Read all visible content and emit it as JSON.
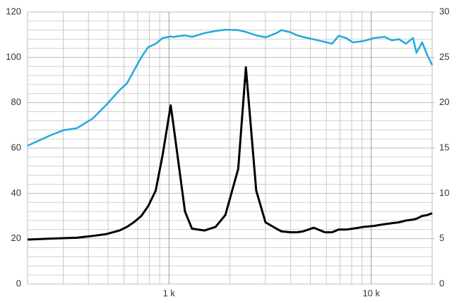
{
  "chart_data": {
    "type": "line",
    "xscale": "log",
    "grid": true,
    "x": [
      200,
      260,
      300,
      350,
      420,
      490,
      570,
      620,
      670,
      730,
      790,
      860,
      930,
      1020,
      1050,
      1200,
      1300,
      1500,
      1700,
      1900,
      2200,
      2400,
      2700,
      3000,
      3400,
      3600,
      4000,
      4300,
      4600,
      5200,
      5900,
      6400,
      6900,
      7500,
      8100,
      9200,
      10300,
      11650,
      12630,
      13690,
      14840,
      16080,
      16730,
      17850,
      18920,
      20000
    ],
    "series": [
      {
        "color": "#22a9dc",
        "axis": "y",
        "values": [
          61,
          65.6,
          67.8,
          68.7,
          73,
          79,
          85.5,
          88.5,
          94,
          100,
          104.5,
          106,
          108.5,
          109.2,
          109,
          109.7,
          109,
          110.7,
          111.6,
          112.2,
          112,
          111.2,
          109.7,
          108.8,
          110.7,
          112,
          111,
          109.7,
          109,
          107.9,
          106.8,
          106,
          109.5,
          108.5,
          106.6,
          107.2,
          108.5,
          109,
          107.5,
          108,
          106,
          108.5,
          102,
          106.6,
          101,
          96.6
        ]
      },
      {
        "color": "#000000",
        "axis": "y2",
        "values": [
          4.9,
          5.0,
          5.05,
          5.1,
          5.3,
          5.5,
          5.9,
          6.3,
          6.8,
          7.5,
          8.6,
          10.3,
          14.2,
          19.7,
          17.7,
          8.0,
          6.1,
          5.9,
          6.3,
          7.6,
          12.7,
          23.9,
          10.3,
          6.8,
          6.1,
          5.8,
          5.7,
          5.7,
          5.8,
          6.2,
          5.7,
          5.7,
          6.0,
          6.0,
          6.1,
          6.3,
          6.4,
          6.6,
          6.7,
          6.8,
          7.0,
          7.1,
          7.2,
          7.5,
          7.6,
          7.8
        ]
      }
    ],
    "xlim": [
      200,
      20000
    ],
    "xticks": [
      {
        "value": 1000,
        "label": "1 k"
      },
      {
        "value": 10000,
        "label": "10 k"
      }
    ],
    "x_minor_ticks": [
      300,
      400,
      500,
      600,
      700,
      800,
      900,
      2000,
      3000,
      4000,
      5000,
      6000,
      7000,
      8000,
      9000
    ],
    "ylim": [
      0,
      120
    ],
    "yticks": [
      0,
      20,
      40,
      60,
      80,
      100,
      120
    ],
    "y2lim": [
      0,
      30
    ],
    "y2ticks": [
      0,
      5,
      10,
      15,
      20,
      25,
      30
    ],
    "y2_minor_ticks": [
      1,
      2,
      3,
      4,
      6,
      7,
      8,
      9,
      11,
      12,
      13,
      14,
      16,
      17,
      18,
      19,
      21,
      22,
      23,
      24,
      26,
      27,
      28,
      29
    ]
  }
}
